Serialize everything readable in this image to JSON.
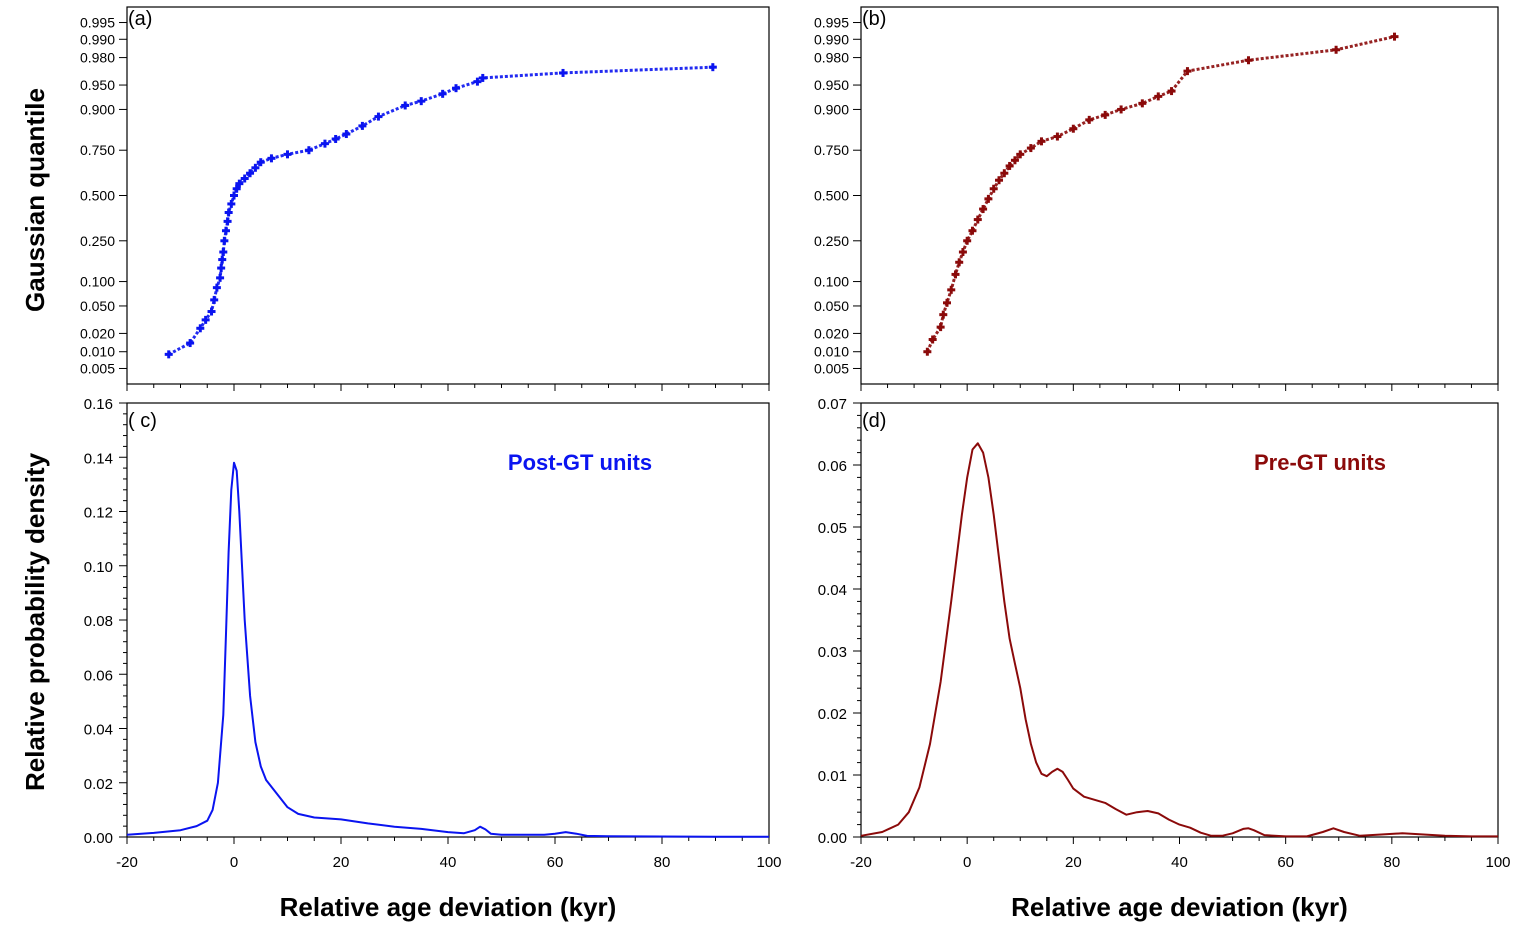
{
  "figure": {
    "ylabel_top": "Gaussian quantile",
    "ylabel_bottom": "Relative probability density"
  },
  "colors": {
    "post": "#0a14f0",
    "pre": "#8b0a0a",
    "axis": "#000000"
  },
  "chart_data": [
    {
      "id": "a",
      "type": "scatter",
      "panel_label": "(a)",
      "color": "#0a14f0",
      "x_range": [
        -20,
        100
      ],
      "x_ticks": [
        -20,
        0,
        20,
        40,
        60,
        80,
        100
      ],
      "y_scale": "probit",
      "y_ticks": [
        "0.005",
        "0.010",
        "0.020",
        "0.050",
        "0.100",
        "0.250",
        "0.500",
        "0.750",
        "0.900",
        "0.950",
        "0.980",
        "0.990",
        "0.995"
      ],
      "x": [
        -12.2,
        -8.2,
        -6.3,
        -5.3,
        -4.2,
        -3.7,
        -3.2,
        -2.6,
        -2.4,
        -2.2,
        -2.0,
        -1.8,
        -1.5,
        -1.2,
        -1.0,
        -0.5,
        0.0,
        0.5,
        1.0,
        2.0,
        3.0,
        4.0,
        5.0,
        7.0,
        10.0,
        14.0,
        17.0,
        19.0,
        21.0,
        24.0,
        27.0,
        32.0,
        35.0,
        39.0,
        41.5,
        45.5,
        46.5,
        61.5,
        89.5
      ],
      "y": [
        0.009,
        0.014,
        0.024,
        0.032,
        0.042,
        0.06,
        0.085,
        0.11,
        0.14,
        0.17,
        0.2,
        0.25,
        0.3,
        0.35,
        0.4,
        0.45,
        0.5,
        0.54,
        0.57,
        0.6,
        0.63,
        0.66,
        0.69,
        0.71,
        0.73,
        0.75,
        0.78,
        0.8,
        0.82,
        0.85,
        0.88,
        0.91,
        0.92,
        0.935,
        0.945,
        0.955,
        0.96,
        0.966,
        0.972
      ]
    },
    {
      "id": "b",
      "type": "scatter",
      "panel_label": "(b)",
      "color": "#8b0a0a",
      "x_range": [
        -20,
        100
      ],
      "x_ticks": [
        -20,
        0,
        20,
        40,
        60,
        80,
        100
      ],
      "y_scale": "probit",
      "y_ticks": [
        "0.005",
        "0.010",
        "0.020",
        "0.050",
        "0.100",
        "0.250",
        "0.500",
        "0.750",
        "0.900",
        "0.950",
        "0.980",
        "0.990",
        "0.995"
      ],
      "x": [
        -7.5,
        -6.5,
        -5.0,
        -4.5,
        -3.8,
        -3.0,
        -2.2,
        -1.5,
        -0.8,
        0.0,
        1.0,
        2.0,
        3.0,
        4.0,
        5.0,
        6.0,
        7.0,
        8.0,
        9.0,
        10.0,
        12.0,
        14.0,
        17.0,
        20.0,
        23.0,
        26.0,
        29.0,
        33.0,
        36.0,
        38.5,
        41.5,
        53.0,
        69.5,
        80.5
      ],
      "y": [
        0.01,
        0.016,
        0.025,
        0.038,
        0.055,
        0.08,
        0.12,
        0.16,
        0.2,
        0.25,
        0.3,
        0.36,
        0.42,
        0.48,
        0.54,
        0.59,
        0.63,
        0.67,
        0.7,
        0.73,
        0.76,
        0.79,
        0.81,
        0.84,
        0.87,
        0.885,
        0.9,
        0.915,
        0.93,
        0.94,
        0.968,
        0.978,
        0.985,
        0.991
      ]
    },
    {
      "id": "c",
      "type": "line",
      "panel_label": "( c)",
      "series_label": "Post-GT units",
      "color": "#0a14f0",
      "x_range": [
        -20,
        100
      ],
      "x_ticks": [
        "-20",
        "0",
        "20",
        "40",
        "60",
        "80",
        "100"
      ],
      "y_range": [
        0,
        0.16
      ],
      "y_ticks": [
        "0.00",
        "0.02",
        "0.04",
        "0.06",
        "0.08",
        "0.10",
        "0.12",
        "0.14",
        "0.16"
      ],
      "xlabel": "Relative age deviation (kyr)",
      "x": [
        -20,
        -15,
        -10,
        -7,
        -5,
        -4,
        -3,
        -2,
        -1.5,
        -1,
        -0.5,
        0,
        0.5,
        1,
        1.5,
        2,
        3,
        4,
        5,
        6,
        8,
        10,
        12,
        15,
        20,
        25,
        30,
        35,
        40,
        43,
        45,
        46,
        47,
        48,
        50,
        55,
        58,
        60,
        62,
        64,
        66,
        70,
        80,
        90,
        100
      ],
      "y": [
        0.0008,
        0.0015,
        0.0025,
        0.004,
        0.006,
        0.01,
        0.02,
        0.045,
        0.075,
        0.105,
        0.128,
        0.138,
        0.135,
        0.12,
        0.1,
        0.08,
        0.052,
        0.035,
        0.026,
        0.021,
        0.016,
        0.011,
        0.0085,
        0.0072,
        0.0065,
        0.005,
        0.0038,
        0.003,
        0.0018,
        0.0014,
        0.0025,
        0.0038,
        0.0028,
        0.0012,
        0.0008,
        0.0008,
        0.0008,
        0.0012,
        0.0018,
        0.0012,
        0.0004,
        0.0003,
        0.0002,
        0.0001,
        0.0001
      ]
    },
    {
      "id": "d",
      "type": "line",
      "panel_label": "(d)",
      "series_label": "Pre-GT units",
      "color": "#8b0a0a",
      "x_range": [
        -20,
        100
      ],
      "x_ticks": [
        "-20",
        "0",
        "20",
        "40",
        "60",
        "80",
        "100"
      ],
      "y_range": [
        0,
        0.07
      ],
      "y_ticks": [
        "0.00",
        "0.01",
        "0.02",
        "0.03",
        "0.04",
        "0.05",
        "0.06",
        "0.07"
      ],
      "xlabel": "Relative age deviation (kyr)",
      "x": [
        -20,
        -16,
        -13,
        -11,
        -9,
        -7,
        -5,
        -3,
        -1,
        0,
        1,
        2,
        3,
        4,
        5,
        6,
        7,
        8,
        9,
        10,
        11,
        12,
        13,
        14,
        15,
        16,
        17,
        18,
        19,
        20,
        22,
        24,
        26,
        28,
        30,
        32,
        34,
        36,
        38,
        40,
        42,
        44,
        46,
        48,
        50,
        52,
        53,
        54,
        56,
        60,
        64,
        67,
        69,
        71,
        74,
        78,
        82,
        86,
        90,
        95,
        100
      ],
      "y": [
        0.0002,
        0.0008,
        0.002,
        0.004,
        0.008,
        0.015,
        0.025,
        0.038,
        0.052,
        0.058,
        0.0625,
        0.0635,
        0.062,
        0.058,
        0.052,
        0.045,
        0.038,
        0.032,
        0.028,
        0.024,
        0.019,
        0.015,
        0.012,
        0.0102,
        0.0098,
        0.0105,
        0.011,
        0.0105,
        0.0092,
        0.0078,
        0.0065,
        0.006,
        0.0055,
        0.0045,
        0.0036,
        0.004,
        0.0042,
        0.0038,
        0.0028,
        0.002,
        0.0015,
        0.0007,
        0.0002,
        0.0002,
        0.0006,
        0.0013,
        0.0014,
        0.0011,
        0.0003,
        0.0001,
        0.0001,
        0.0008,
        0.0014,
        0.0008,
        0.0002,
        0.0004,
        0.0006,
        0.0004,
        0.0002,
        0.0001,
        0.0001
      ]
    }
  ]
}
